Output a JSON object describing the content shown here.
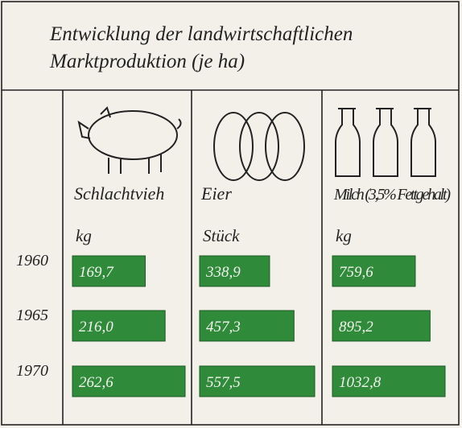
{
  "chart_data": {
    "type": "bar",
    "title": "Entwicklung der landwirtschaftlichen Marktproduktion (je ha)",
    "categories": [
      "1960",
      "1965",
      "1970"
    ],
    "series": [
      {
        "name": "Schlachtvieh",
        "unit": "kg",
        "color": "#2f8a3a",
        "values": [
          169.7,
          216.0,
          262.6
        ],
        "value_labels": [
          "169,7",
          "216,0",
          "262,6"
        ]
      },
      {
        "name": "Eier",
        "unit": "Stück",
        "color": "#2f8a3a",
        "values": [
          338.9,
          457.3,
          557.5
        ],
        "value_labels": [
          "338,9",
          "457,3",
          "557,5"
        ]
      },
      {
        "name": "Milch (3,5% Fettgehalt)",
        "unit": "kg",
        "color": "#2f8a3a",
        "values": [
          759.6,
          895.2,
          1032.8
        ],
        "value_labels": [
          "759,6",
          "895,2",
          "1032,8"
        ]
      }
    ]
  }
}
